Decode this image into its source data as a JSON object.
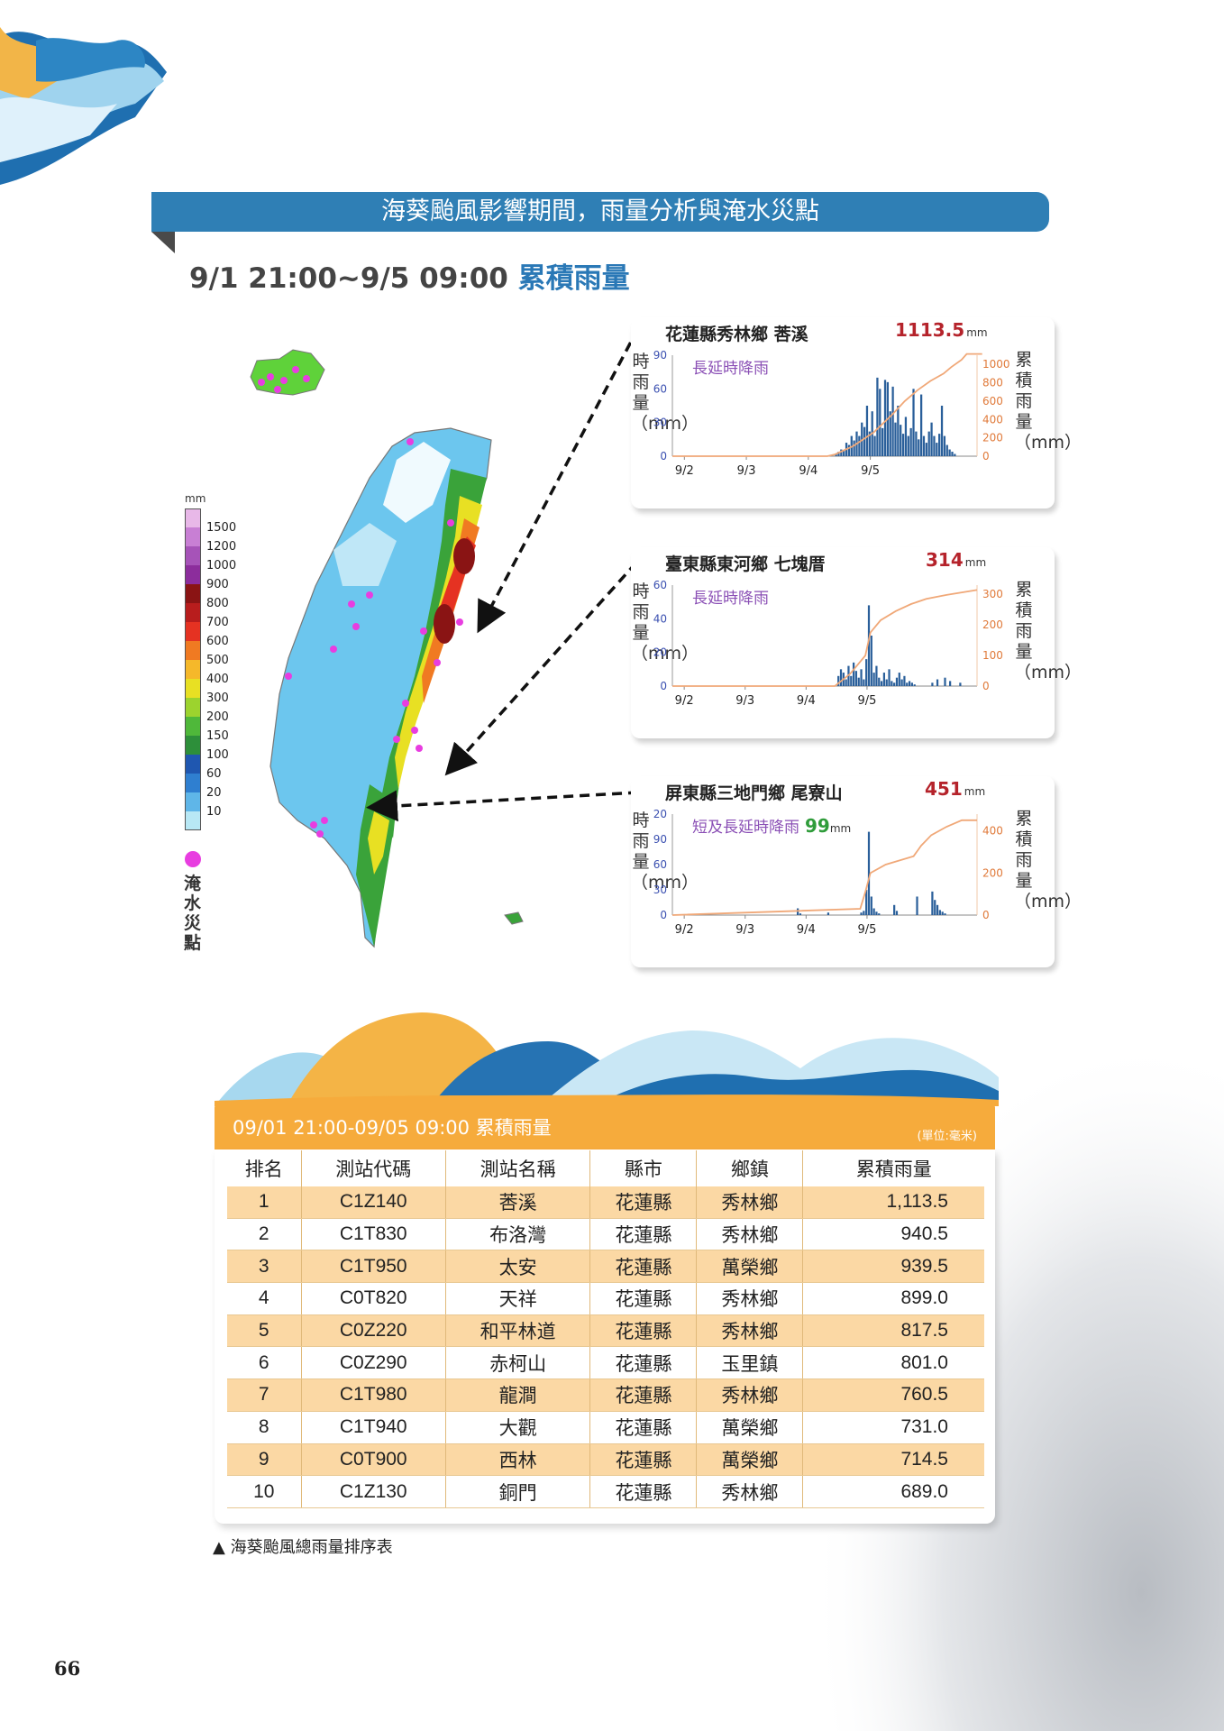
{
  "banner": {
    "title": "海葵颱風影響期間，雨量分析與淹水災點"
  },
  "heading": {
    "period": "9/1 21:00~9/5 09:00 ",
    "highlight": "累積雨量"
  },
  "legend": {
    "unit": "mm",
    "levels": [
      {
        "label": "1500",
        "color": "#e8b8e8"
      },
      {
        "label": "1200",
        "color": "#c87fd4"
      },
      {
        "label": "1000",
        "color": "#a653b8"
      },
      {
        "label": "900",
        "color": "#8c2d9c"
      },
      {
        "label": "800",
        "color": "#8a1414"
      },
      {
        "label": "700",
        "color": "#b81d1d"
      },
      {
        "label": "600",
        "color": "#e53222"
      },
      {
        "label": "500",
        "color": "#f07a22"
      },
      {
        "label": "400",
        "color": "#f5b82a"
      },
      {
        "label": "300",
        "color": "#e8e023"
      },
      {
        "label": "200",
        "color": "#9cd32e"
      },
      {
        "label": "150",
        "color": "#4fb83a"
      },
      {
        "label": "100",
        "color": "#2d8f3a"
      },
      {
        "label": "60",
        "color": "#1f57b0"
      },
      {
        "label": "20",
        "color": "#2f7fd0"
      },
      {
        "label": "10",
        "color": "#5fb6e8"
      },
      {
        "label": "",
        "color": "#b8e8f5"
      }
    ],
    "flood_label": "淹水災點",
    "flood_color": "#e83de0"
  },
  "charts": [
    {
      "station": "花蓮縣秀林鄉 莕溪",
      "total": "1113.5",
      "unit": "mm",
      "note": "長延時降雨",
      "note_extra": "",
      "note_extra_unit": "",
      "left_axis": "時雨量（mm）",
      "right_axis": "累積雨量（mm）",
      "x_ticks": [
        "9/2",
        "9/3",
        "9/4",
        "9/5"
      ],
      "left_ticks": [
        "0",
        "30",
        "60",
        "90"
      ],
      "left_max": 90,
      "right_ticks": [
        "0",
        "200",
        "400",
        "600",
        "800",
        "1000"
      ],
      "right_max": 1100,
      "bar_color": "#2a5f9a",
      "line_color": "#f0a878",
      "bars_hourly": [
        0,
        0,
        0,
        0,
        0,
        0,
        0,
        0,
        0,
        0,
        0,
        0,
        0,
        0,
        0,
        0,
        0,
        0,
        0,
        0,
        0,
        0,
        0,
        0,
        0,
        0,
        0,
        0,
        0,
        0,
        0,
        0,
        0,
        0,
        0,
        0,
        0,
        0,
        0,
        0,
        0,
        0,
        0,
        0,
        0,
        0,
        0,
        0,
        0,
        0,
        0,
        0,
        0,
        0,
        0,
        0,
        0,
        0,
        0,
        0,
        0,
        0,
        0,
        2,
        4,
        6,
        5,
        12,
        10,
        18,
        14,
        22,
        18,
        30,
        26,
        45,
        22,
        40,
        18,
        70,
        60,
        25,
        68,
        66,
        40,
        62,
        30,
        45,
        28,
        20,
        35,
        18,
        25,
        60,
        22,
        15,
        55,
        18,
        12,
        22,
        30,
        18,
        12,
        20,
        45,
        18,
        10,
        6,
        4,
        2,
        0,
        0,
        0,
        0,
        0,
        0,
        0,
        0
      ],
      "cumulative_points": [
        [
          0,
          0
        ],
        [
          60,
          0
        ],
        [
          63,
          20
        ],
        [
          70,
          110
        ],
        [
          78,
          260
        ],
        [
          85,
          450
        ],
        [
          90,
          600
        ],
        [
          95,
          720
        ],
        [
          100,
          820
        ],
        [
          105,
          900
        ],
        [
          108,
          970
        ],
        [
          112,
          1050
        ],
        [
          114,
          1113.5
        ],
        [
          120,
          1113.5
        ]
      ]
    },
    {
      "station": "臺東縣東河鄉 七塊厝",
      "total": "314",
      "unit": "mm",
      "note": "長延時降雨",
      "note_extra": "",
      "note_extra_unit": "",
      "left_axis": "時雨量（mm）",
      "right_axis": "累積雨量（mm）",
      "x_ticks": [
        "9/2",
        "9/3",
        "9/4",
        "9/5"
      ],
      "left_ticks": [
        "0",
        "20",
        "40",
        "60"
      ],
      "left_max": 60,
      "right_ticks": [
        "0",
        "100",
        "200",
        "300"
      ],
      "right_max": 330,
      "bar_color": "#2a5f9a",
      "line_color": "#f0a878",
      "bars_hourly": [
        0,
        0,
        0,
        0,
        0,
        0,
        0,
        0,
        0,
        0,
        0,
        0,
        0,
        0,
        0,
        0,
        0,
        0,
        0,
        0,
        0,
        0,
        0,
        0,
        0,
        0,
        0,
        0,
        0,
        0,
        0,
        0,
        0,
        0,
        0,
        0,
        0,
        0,
        0,
        0,
        0,
        0,
        0,
        0,
        0,
        0,
        0,
        0,
        0,
        0,
        0,
        0,
        0,
        0,
        0,
        0,
        0,
        0,
        0,
        0,
        0,
        0,
        0,
        0,
        0,
        6,
        10,
        8,
        4,
        12,
        6,
        14,
        9,
        5,
        10,
        4,
        16,
        48,
        30,
        8,
        12,
        5,
        3,
        8,
        4,
        10,
        3,
        2,
        5,
        8,
        4,
        6,
        2,
        3,
        2,
        1,
        0,
        0,
        0,
        0,
        0,
        0,
        2,
        0,
        4,
        0,
        0,
        5,
        0,
        3,
        0,
        0,
        0,
        2,
        0,
        0,
        0,
        0,
        0,
        0
      ],
      "cumulative_points": [
        [
          0,
          0
        ],
        [
          64,
          0
        ],
        [
          70,
          40
        ],
        [
          76,
          100
        ],
        [
          78,
          175
        ],
        [
          82,
          215
        ],
        [
          88,
          245
        ],
        [
          94,
          268
        ],
        [
          100,
          285
        ],
        [
          108,
          298
        ],
        [
          120,
          314
        ]
      ]
    },
    {
      "station": "屏東縣三地門鄉 尾寮山",
      "total": "451",
      "unit": "mm",
      "note": "短及長延時降雨",
      "note_extra": "99",
      "note_extra_unit": "mm",
      "left_axis": "時雨量（mm）",
      "right_axis": "累積雨量（mm）",
      "x_ticks": [
        "9/2",
        "9/3",
        "9/4",
        "9/5"
      ],
      "left_ticks": [
        "0",
        "30",
        "60",
        "90",
        "120"
      ],
      "left_max": 120,
      "right_ticks": [
        "0",
        "200",
        "400"
      ],
      "right_max": 480,
      "bar_color": "#2a5f9a",
      "line_color": "#f0a878",
      "bars_hourly": [
        0,
        0,
        0,
        0,
        0,
        0,
        0,
        0,
        0,
        0,
        0,
        0,
        0,
        0,
        0,
        0,
        0,
        0,
        0,
        0,
        0,
        0,
        0,
        0,
        0,
        0,
        0,
        0,
        0,
        0,
        0,
        0,
        0,
        0,
        0,
        0,
        0,
        0,
        0,
        0,
        0,
        0,
        0,
        0,
        0,
        0,
        0,
        0,
        0,
        8,
        2,
        0,
        0,
        0,
        0,
        0,
        0,
        0,
        0,
        0,
        0,
        3,
        0,
        0,
        0,
        0,
        0,
        0,
        0,
        0,
        0,
        0,
        0,
        0,
        3,
        5,
        30,
        99,
        22,
        8,
        4,
        2,
        0,
        0,
        0,
        0,
        0,
        12,
        5,
        0,
        0,
        0,
        0,
        0,
        0,
        0,
        22,
        0,
        0,
        0,
        0,
        0,
        28,
        18,
        12,
        6,
        4,
        2,
        0,
        0,
        0,
        0,
        0,
        0,
        0,
        0,
        0,
        0,
        0,
        0
      ],
      "cumulative_points": [
        [
          0,
          0
        ],
        [
          74,
          30
        ],
        [
          76,
          110
        ],
        [
          78,
          200
        ],
        [
          84,
          240
        ],
        [
          95,
          280
        ],
        [
          98,
          330
        ],
        [
          102,
          380
        ],
        [
          108,
          420
        ],
        [
          114,
          451
        ],
        [
          120,
          451
        ]
      ]
    }
  ],
  "table": {
    "title": "09/01 21:00-09/05 09:00 累積雨量",
    "unit_note": "(單位:毫米)",
    "columns": [
      "排名",
      "測站代碼",
      "測站名稱",
      "縣市",
      "鄉鎮",
      "累積雨量"
    ],
    "rows": [
      [
        "1",
        "C1Z140",
        "莕溪",
        "花蓮縣",
        "秀林鄉",
        "1,113.5"
      ],
      [
        "2",
        "C1T830",
        "布洛灣",
        "花蓮縣",
        "秀林鄉",
        "940.5"
      ],
      [
        "3",
        "C1T950",
        "太安",
        "花蓮縣",
        "萬榮鄉",
        "939.5"
      ],
      [
        "4",
        "C0T820",
        "天祥",
        "花蓮縣",
        "秀林鄉",
        "899.0"
      ],
      [
        "5",
        "C0Z220",
        "和平林道",
        "花蓮縣",
        "秀林鄉",
        "817.5"
      ],
      [
        "6",
        "C0Z290",
        "赤柯山",
        "花蓮縣",
        "玉里鎮",
        "801.0"
      ],
      [
        "7",
        "C1T980",
        "龍澗",
        "花蓮縣",
        "秀林鄉",
        "760.5"
      ],
      [
        "8",
        "C1T940",
        "大觀",
        "花蓮縣",
        "萬榮鄉",
        "731.0"
      ],
      [
        "9",
        "C0T900",
        "西林",
        "花蓮縣",
        "萬榮鄉",
        "714.5"
      ],
      [
        "10",
        "C1Z130",
        "銅門",
        "花蓮縣",
        "秀林鄉",
        "689.0"
      ]
    ]
  },
  "caption": "▲ 海葵颱風總雨量排序表",
  "page_number": "66"
}
